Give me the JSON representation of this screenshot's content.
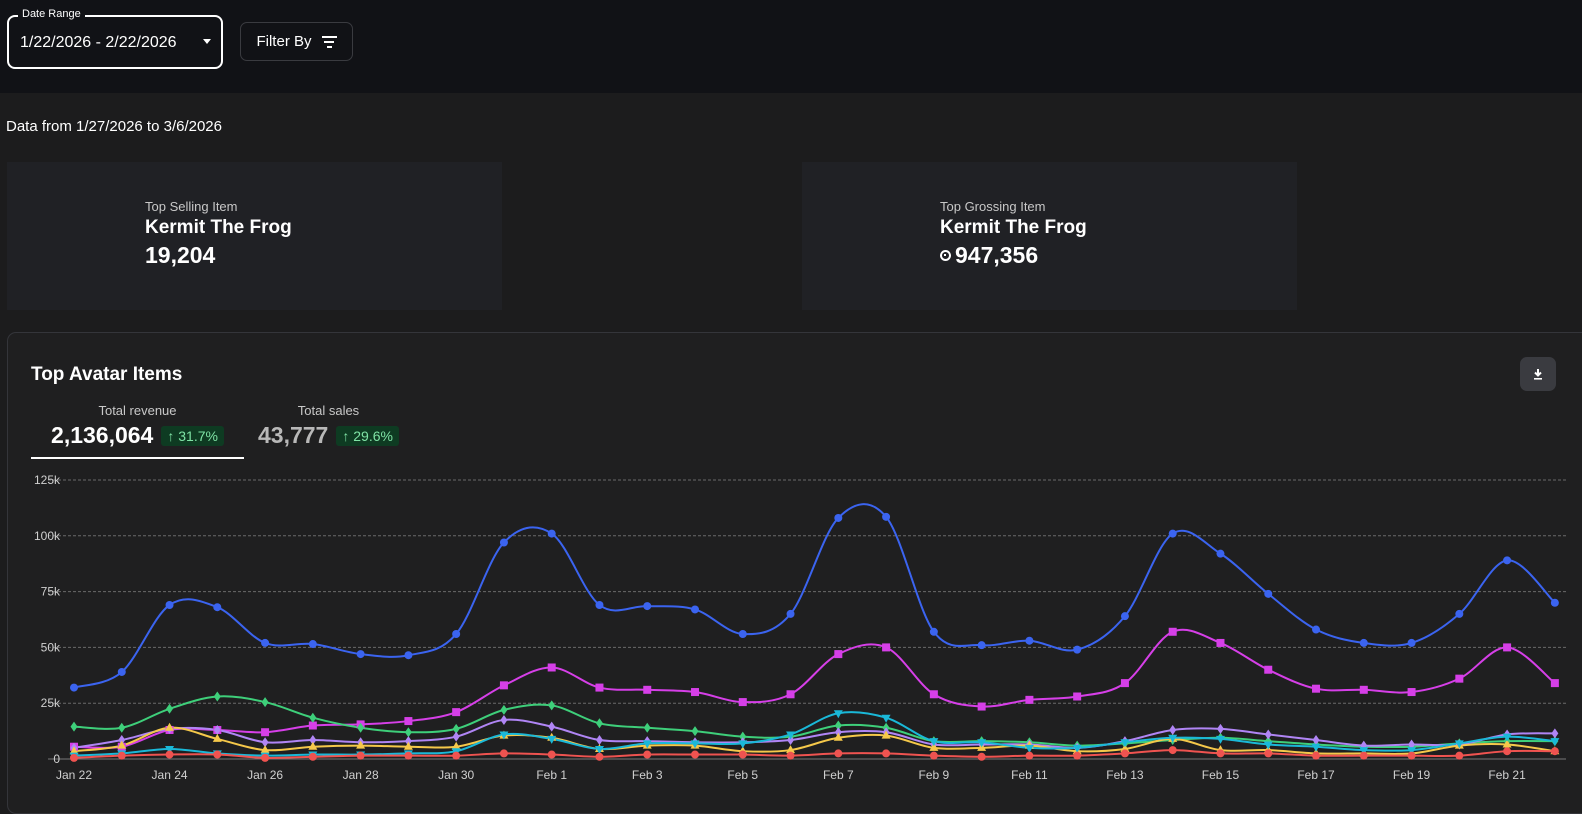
{
  "filters": {
    "date_range_label": "Date Range",
    "date_range_value": "1/22/2026 - 2/22/2026",
    "filter_by_label": "Filter By"
  },
  "data_range_text": "Data from 1/27/2026 to 3/6/2026",
  "cards": [
    {
      "label": "Top Selling Item",
      "name": "Kermit The Frog",
      "value": "19,204"
    },
    {
      "label": "Top Grossing Item",
      "name": "Kermit The Frog",
      "value": "947,356",
      "icon": "robux-coin-icon"
    }
  ],
  "chart_section": {
    "title": "Top Avatar Items",
    "download_icon": "download-icon",
    "tabs": [
      {
        "label": "Total revenue",
        "value": "2,136,064",
        "change": "↑ 31.7%",
        "active": true
      },
      {
        "label": "Total sales",
        "value": "43,777",
        "change": "↑ 29.6%",
        "active": false
      }
    ]
  },
  "chart_data": {
    "type": "line",
    "title": "",
    "xlabel": "",
    "ylabel": "",
    "ylim": [
      0,
      125000
    ],
    "yticks": [
      0,
      25000,
      50000,
      75000,
      100000,
      125000
    ],
    "ytick_labels": [
      "0",
      "25k",
      "50k",
      "75k",
      "100k",
      "125k"
    ],
    "x": [
      "Jan 22",
      "Jan 23",
      "Jan 24",
      "Jan 25",
      "Jan 26",
      "Jan 27",
      "Jan 28",
      "Jan 29",
      "Jan 30",
      "Jan 31",
      "Feb 1",
      "Feb 2",
      "Feb 3",
      "Feb 4",
      "Feb 5",
      "Feb 6",
      "Feb 7",
      "Feb 8",
      "Feb 9",
      "Feb 10",
      "Feb 11",
      "Feb 12",
      "Feb 13",
      "Feb 14",
      "Feb 15",
      "Feb 16",
      "Feb 17",
      "Feb 18",
      "Feb 19",
      "Feb 20",
      "Feb 21",
      "Feb 22"
    ],
    "xtick_labels": [
      "Jan 22",
      "Jan 24",
      "Jan 26",
      "Jan 28",
      "Jan 30",
      "Feb 1",
      "Feb 3",
      "Feb 5",
      "Feb 7",
      "Feb 9",
      "Feb 11",
      "Feb 13",
      "Feb 15",
      "Feb 17",
      "Feb 19",
      "Feb 21"
    ],
    "grid": true,
    "series": [
      {
        "color": "#3b64f0",
        "marker": "circle",
        "values": [
          32000,
          39000,
          69000,
          68000,
          52000,
          51500,
          47000,
          46500,
          56000,
          97000,
          101000,
          69000,
          68500,
          67000,
          56000,
          65000,
          108000,
          108500,
          57000,
          51000,
          53000,
          49000,
          64000,
          101000,
          92000,
          74000,
          58000,
          52000,
          52000,
          65000,
          89000,
          70000
        ]
      },
      {
        "color": "#d63fe8",
        "marker": "square",
        "values": [
          5500,
          5500,
          13000,
          13000,
          12000,
          15000,
          15500,
          17000,
          21000,
          33000,
          41000,
          32000,
          31000,
          30000,
          25500,
          29000,
          47000,
          50000,
          29000,
          23500,
          26500,
          28000,
          34000,
          57000,
          52000,
          40000,
          31500,
          31000,
          30000,
          36000,
          50000,
          34000
        ]
      },
      {
        "color": "#3ecf7a",
        "marker": "diamond",
        "values": [
          14500,
          14000,
          22500,
          28000,
          25500,
          18500,
          14000,
          12000,
          13500,
          22000,
          24000,
          16000,
          14000,
          12500,
          10000,
          10000,
          15000,
          14000,
          8000,
          8000,
          7500,
          6000,
          7000,
          8500,
          9500,
          8000,
          6500,
          5500,
          5500,
          7000,
          8000,
          8000
        ]
      },
      {
        "color": "#b085f5",
        "marker": "diamond",
        "values": [
          5000,
          8500,
          13500,
          13000,
          7500,
          8500,
          7500,
          8000,
          10000,
          17500,
          14500,
          8500,
          8000,
          7500,
          7500,
          8500,
          12000,
          12000,
          6500,
          6500,
          6500,
          5000,
          8000,
          13000,
          13500,
          11000,
          8500,
          6000,
          6500,
          6500,
          11000,
          11500
        ]
      },
      {
        "color": "#f5c84a",
        "marker": "triangle-up",
        "values": [
          3500,
          6000,
          14000,
          9000,
          4000,
          5500,
          6000,
          5500,
          5500,
          10500,
          9500,
          4500,
          6000,
          6000,
          3500,
          4000,
          9500,
          10500,
          5000,
          5000,
          6000,
          3500,
          4500,
          9000,
          4000,
          4000,
          2500,
          2500,
          2500,
          6000,
          6500,
          3500
        ]
      },
      {
        "color": "#1ab8d8",
        "marker": "triangle-down",
        "values": [
          1500,
          2500,
          4500,
          2500,
          1500,
          2000,
          2000,
          2500,
          3500,
          11000,
          9000,
          4500,
          7000,
          7000,
          7000,
          11000,
          20500,
          18500,
          8000,
          7500,
          5000,
          5000,
          7500,
          9500,
          9000,
          6500,
          5500,
          4000,
          4000,
          7000,
          10000,
          8000
        ]
      },
      {
        "color": "#ef5350",
        "marker": "circle",
        "values": [
          500,
          1500,
          2000,
          2000,
          500,
          1000,
          1500,
          1500,
          1500,
          2500,
          2000,
          1000,
          2000,
          2000,
          2000,
          1500,
          2500,
          2500,
          1500,
          1000,
          1500,
          1500,
          2500,
          4000,
          2500,
          2500,
          1500,
          1500,
          1500,
          1500,
          3500,
          3500
        ]
      }
    ]
  }
}
